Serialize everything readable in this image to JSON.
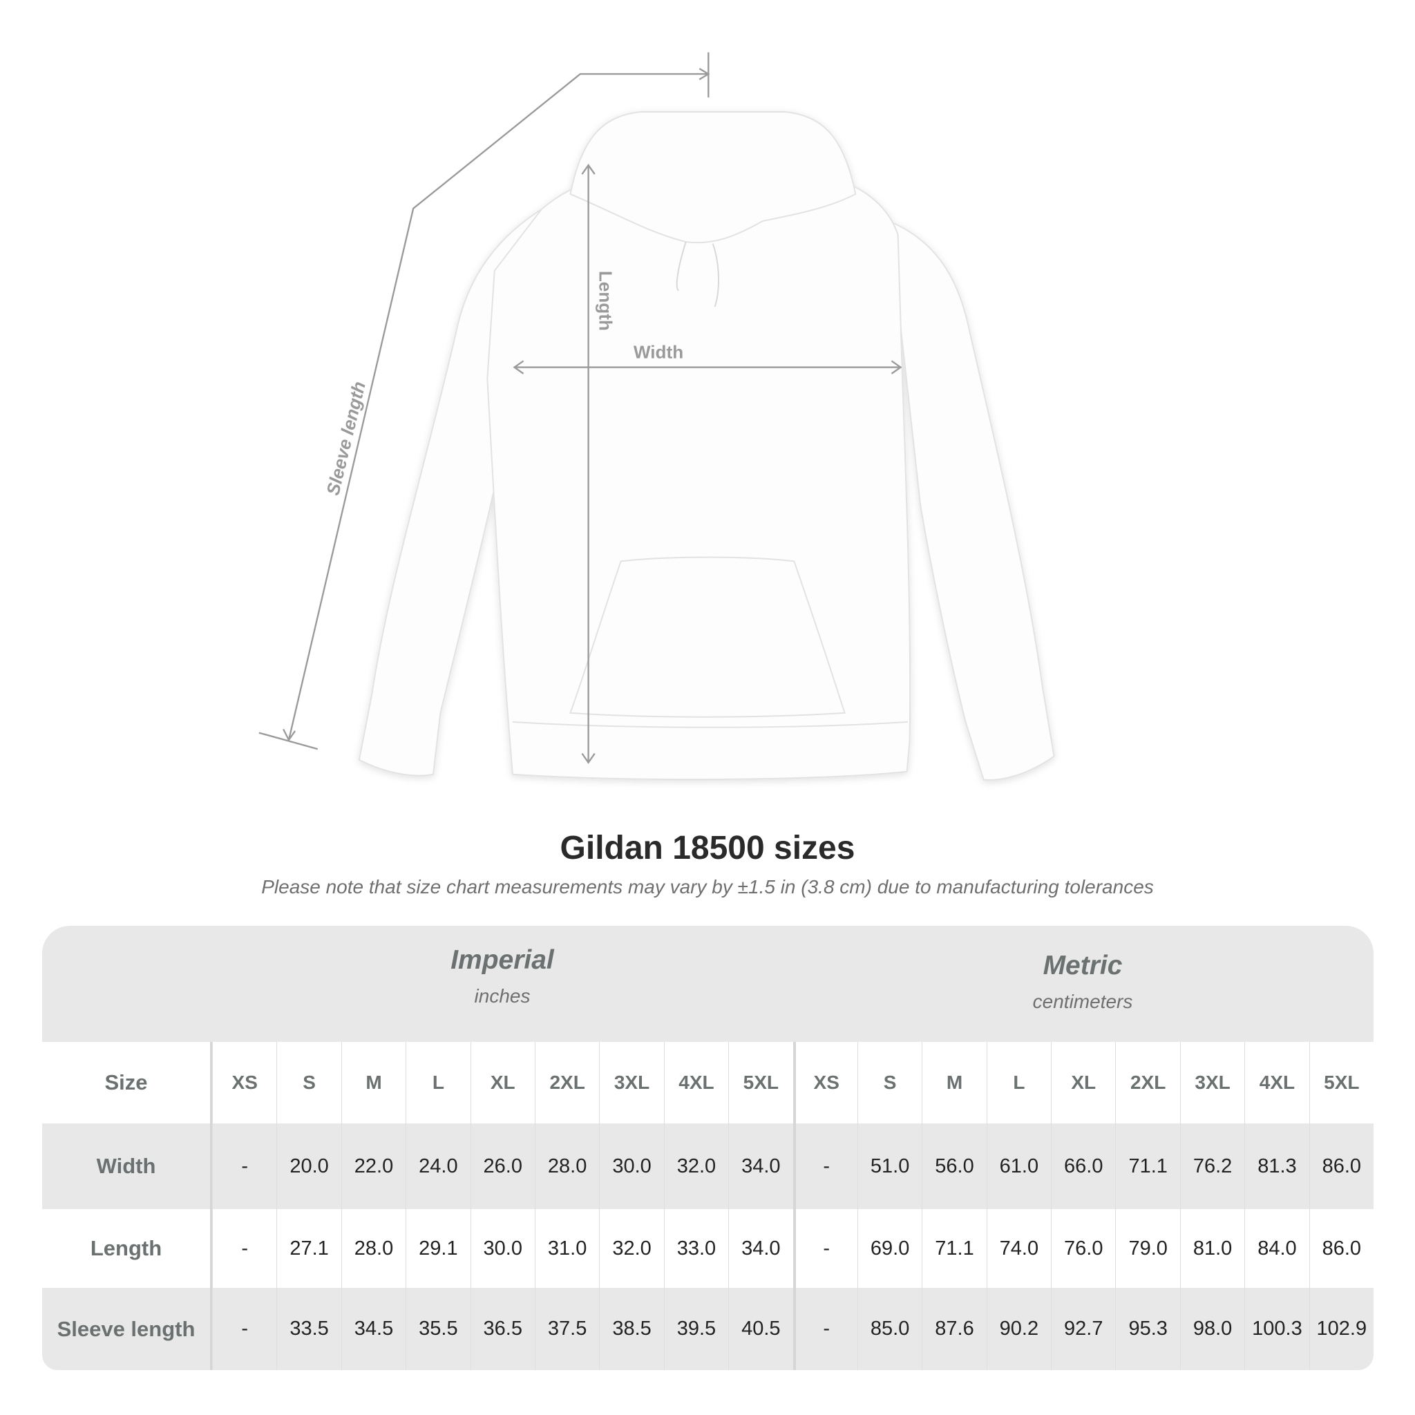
{
  "diagram": {
    "labels": {
      "length": "Length",
      "width": "Width",
      "sleeve": "Sleeve length"
    },
    "line_color": "#9a9a9a"
  },
  "title": "Gildan 18500 sizes",
  "note": "Please note that size chart measurements may vary by ±1.5 in (3.8 cm) due to manufacturing tolerances",
  "table": {
    "imperial": {
      "name": "Imperial",
      "unit": "inches"
    },
    "metric": {
      "name": "Metric",
      "unit": "centimeters"
    },
    "size_label": "Size",
    "sizes": [
      "XS",
      "S",
      "M",
      "L",
      "XL",
      "2XL",
      "3XL",
      "4XL",
      "5XL"
    ],
    "rows": [
      {
        "label": "Width",
        "imperial": [
          "-",
          "20.0",
          "22.0",
          "24.0",
          "26.0",
          "28.0",
          "30.0",
          "32.0",
          "34.0"
        ],
        "metric": [
          "-",
          "51.0",
          "56.0",
          "61.0",
          "66.0",
          "71.1",
          "76.2",
          "81.3",
          "86.0"
        ]
      },
      {
        "label": "Length",
        "imperial": [
          "-",
          "27.1",
          "28.0",
          "29.1",
          "30.0",
          "31.0",
          "32.0",
          "33.0",
          "34.0"
        ],
        "metric": [
          "-",
          "69.0",
          "71.1",
          "74.0",
          "76.0",
          "79.0",
          "81.0",
          "84.0",
          "86.0"
        ]
      },
      {
        "label": "Sleeve length",
        "imperial": [
          "-",
          "33.5",
          "34.5",
          "35.5",
          "36.5",
          "37.5",
          "38.5",
          "39.5",
          "40.5"
        ],
        "metric": [
          "-",
          "85.0",
          "87.6",
          "90.2",
          "92.7",
          "95.3",
          "98.0",
          "100.3",
          "102.9"
        ]
      }
    ]
  },
  "colors": {
    "header_bg": "#e8e8e8",
    "header_text": "#6b7170",
    "value_text": "#222222"
  }
}
